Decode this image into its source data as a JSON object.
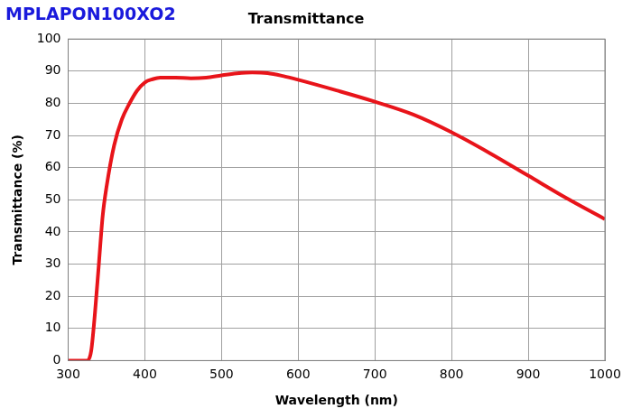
{
  "chart_data": {
    "type": "line",
    "title": "Transmittance",
    "subtitle": "MPLAPON100XO2",
    "x_label": "Wavelength (nm)",
    "y_label": "Transmittance (%)",
    "x": [
      300,
      310,
      320,
      325,
      330,
      335,
      340,
      345,
      350,
      360,
      370,
      380,
      390,
      400,
      410,
      420,
      440,
      460,
      480,
      500,
      520,
      540,
      560,
      580,
      600,
      650,
      700,
      750,
      800,
      850,
      900,
      950,
      1000
    ],
    "values": [
      0,
      0,
      0,
      0,
      3,
      15,
      30,
      45,
      54,
      67,
      75,
      80,
      84,
      86.5,
      87.5,
      88,
      88,
      87.8,
      88,
      88.7,
      89.3,
      89.6,
      89.4,
      88.5,
      87.3,
      84,
      80.5,
      76.5,
      71,
      64.5,
      57.5,
      50.5,
      44
    ],
    "color": "#e8141a",
    "xlim": [
      300,
      1000
    ],
    "xticks": [
      300,
      400,
      500,
      600,
      700,
      800,
      900,
      1000
    ],
    "ylim": [
      0,
      100
    ],
    "yticks": [
      0,
      10,
      20,
      30,
      40,
      50,
      60,
      70,
      80,
      90,
      100
    ],
    "grid": true
  }
}
